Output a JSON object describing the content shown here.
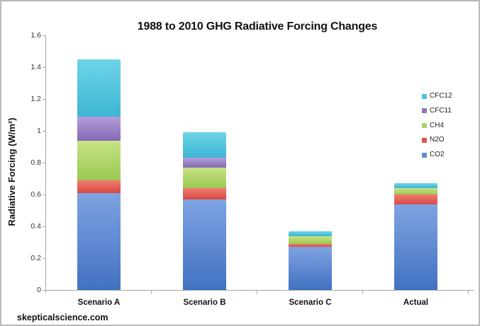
{
  "title": "1988 to 2010 GHG Radiative Forcing Changes",
  "watermark": "skepticalscience.com",
  "colors": {
    "axis": "#a6a6a6",
    "text": "#111111",
    "background": "#ffffff",
    "frame_border": "#b9b9b9"
  },
  "chart_data": {
    "type": "bar",
    "stacked": true,
    "title": "1988 to 2010 GHG Radiative Forcing Changes",
    "xlabel": "",
    "ylabel": "Radiative Forcing (W/m²)",
    "ylim": [
      0,
      1.6
    ],
    "ytick_step": 0.2,
    "ytick_labels": [
      "0",
      "0.2",
      "0.4",
      "0.6",
      "0.8",
      "1",
      "1.2",
      "1.4",
      "1.6"
    ],
    "grid": false,
    "legend_position": "right",
    "legend_order": [
      "CFC12",
      "CFC11",
      "CH4",
      "N2O",
      "CO2"
    ],
    "categories": [
      "Scenario A",
      "Scenario B",
      "Scenario C",
      "Actual"
    ],
    "series": [
      {
        "name": "CO2",
        "color": "#638fd6",
        "gradient": [
          "#7fa3e3",
          "#4171c1"
        ],
        "values": [
          0.61,
          0.57,
          0.27,
          0.54
        ]
      },
      {
        "name": "N2O",
        "color": "#dc544b",
        "gradient": [
          "#f07b72",
          "#d64a42"
        ],
        "values": [
          0.08,
          0.07,
          0.02,
          0.06
        ]
      },
      {
        "name": "CH4",
        "color": "#a9d468",
        "gradient": [
          "#c6e386",
          "#9bc850"
        ],
        "values": [
          0.25,
          0.13,
          0.05,
          0.04
        ]
      },
      {
        "name": "CFC11",
        "color": "#8f77be",
        "gradient": [
          "#b39dd8",
          "#8668b5"
        ],
        "values": [
          0.15,
          0.06,
          0.0,
          0.0
        ]
      },
      {
        "name": "CFC12",
        "color": "#4fc3de",
        "gradient": [
          "#6ed4e8",
          "#3eb6d3"
        ],
        "values": [
          0.36,
          0.16,
          0.03,
          0.03
        ]
      }
    ],
    "totals": [
      1.45,
      0.99,
      0.37,
      0.67
    ]
  }
}
